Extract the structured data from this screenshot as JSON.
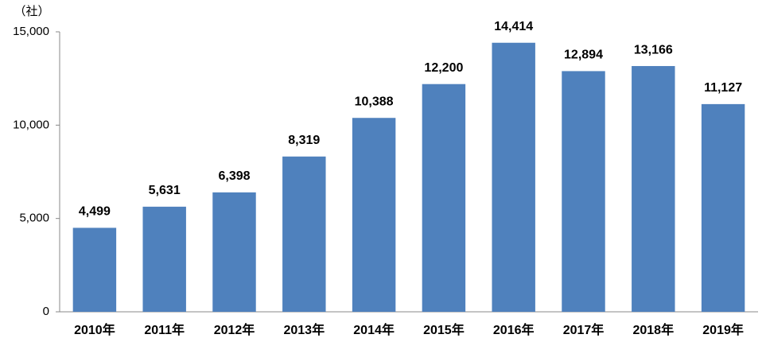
{
  "chart_data": {
    "type": "bar",
    "y_label": "（社）",
    "categories": [
      "2010年",
      "2011年",
      "2012年",
      "2013年",
      "2014年",
      "2015年",
      "2016年",
      "2017年",
      "2018年",
      "2019年"
    ],
    "values": [
      4499,
      5631,
      6398,
      8319,
      10388,
      12200,
      14414,
      12894,
      13166,
      11127
    ],
    "value_labels": [
      "4,499",
      "5,631",
      "6,398",
      "8,319",
      "10,388",
      "12,200",
      "14,414",
      "12,894",
      "13,166",
      "11,127"
    ],
    "color": "#4f81bd",
    "ylim": [
      0,
      15000
    ],
    "yticks": [
      0,
      {
        "value": 5000,
        "label": "5,000"
      },
      {
        "value": 10000,
        "label": "10,000"
      },
      {
        "value": 15000,
        "label": "15,000"
      }
    ],
    "grid": false
  }
}
